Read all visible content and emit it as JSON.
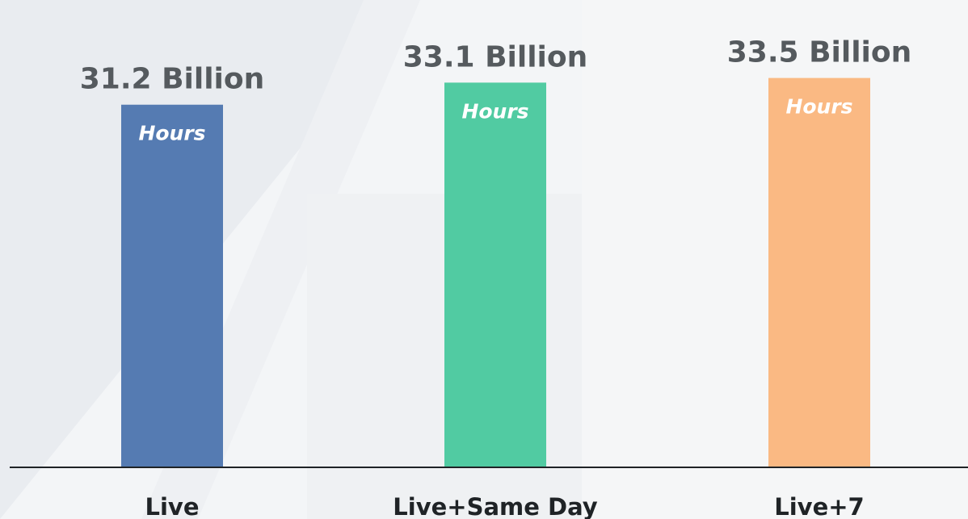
{
  "chart_data": {
    "type": "bar",
    "categories": [
      "Live",
      "Live+Same Day",
      "Live+7"
    ],
    "values": [
      31.2,
      33.1,
      33.5
    ],
    "value_labels": [
      "31.2 Billion",
      "33.1 Billion",
      "33.5 Billion"
    ],
    "unit_labels": [
      "Hours",
      "Hours",
      "Hours"
    ],
    "title": "",
    "xlabel": "",
    "ylabel": "",
    "ylim": [
      0,
      40
    ],
    "grid": false,
    "colors": [
      "#557bb2",
      "#51cba2",
      "#fab983"
    ],
    "background": "#f3f5f7",
    "axis_color": "#1f2326"
  }
}
